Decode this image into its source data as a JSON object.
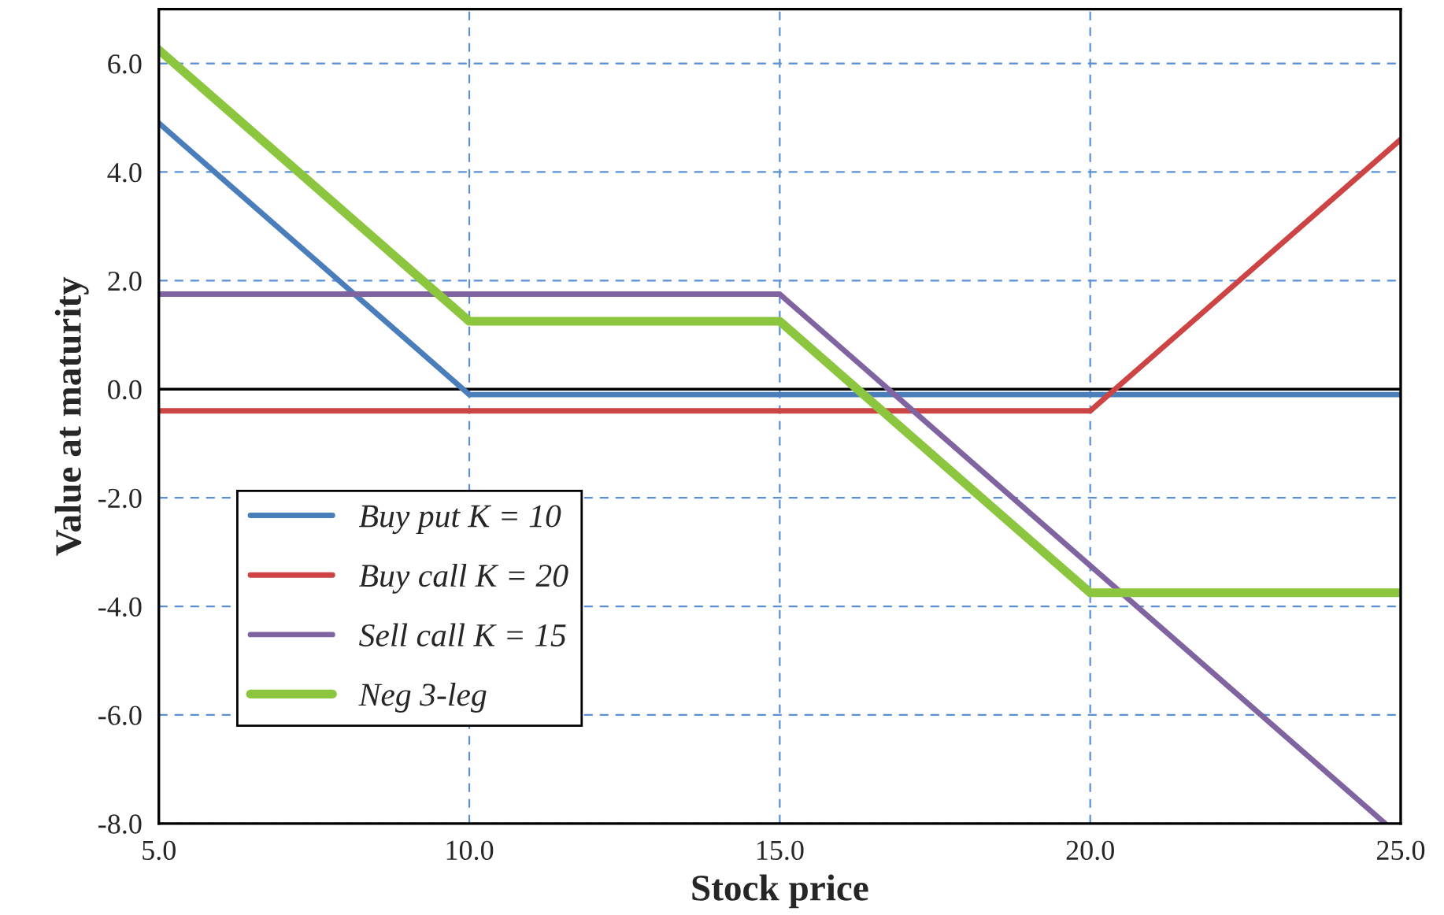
{
  "chart_data": {
    "type": "line",
    "xlabel": "Stock price",
    "ylabel": "Value at maturity",
    "xlim": [
      5,
      25
    ],
    "xticks": [
      {
        "value": 5,
        "label": "5.0"
      },
      {
        "value": 10,
        "label": "10.0"
      },
      {
        "value": 15,
        "label": "15.0"
      },
      {
        "value": 20,
        "label": "20.0"
      },
      {
        "value": 25,
        "label": "25.0"
      }
    ],
    "ylim": [
      -8,
      7
    ],
    "yticks": [
      {
        "value": -8,
        "label": "-8.0"
      },
      {
        "value": -6,
        "label": "-6.0"
      },
      {
        "value": -4,
        "label": "-4.0"
      },
      {
        "value": -2,
        "label": "-2.0"
      },
      {
        "value": 0,
        "label": "0.0"
      },
      {
        "value": 2,
        "label": "2.0"
      },
      {
        "value": 4,
        "label": "4.0"
      },
      {
        "value": 6,
        "label": "6.0"
      }
    ],
    "grid": true,
    "legend": "bottom left",
    "marker": "none",
    "line_style": "solid",
    "ref_lines": [
      {
        "axis": "y",
        "value": 0,
        "color": "#000000"
      }
    ],
    "series": [
      {
        "name": "Buy put K = 10",
        "color": "#4a7ebb",
        "x": [
          5,
          10,
          25
        ],
        "values": [
          4.9,
          -0.1,
          -0.1
        ]
      },
      {
        "name": "Buy call K = 20",
        "color": "#cc4444",
        "x": [
          5,
          20,
          25
        ],
        "values": [
          -0.4,
          -0.4,
          4.6
        ]
      },
      {
        "name": "Sell call K = 15",
        "color": "#8064a2",
        "x": [
          5,
          15,
          24.75
        ],
        "values": [
          1.75,
          1.75,
          -8.0
        ]
      },
      {
        "name": "Neg 3-leg",
        "color": "#8cc63f",
        "x": [
          5,
          10,
          15,
          20,
          25
        ],
        "values": [
          6.25,
          1.25,
          1.25,
          -3.75,
          -3.75
        ]
      }
    ]
  }
}
